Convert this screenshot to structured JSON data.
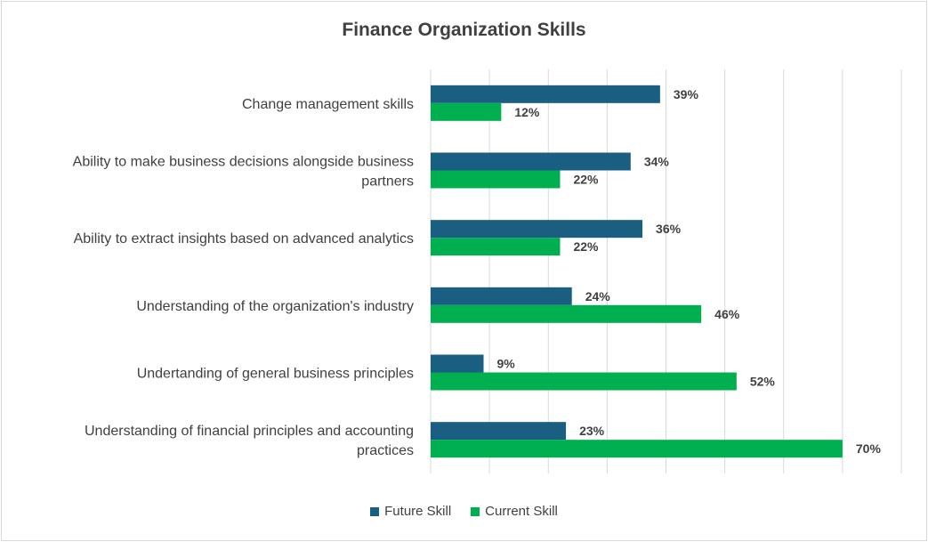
{
  "chart_data": {
    "type": "bar",
    "orientation": "horizontal",
    "title": "Finance Organization Skills",
    "categories": [
      [
        "Change management skills"
      ],
      [
        "Ability to make business decisions alongside business",
        "partners"
      ],
      [
        "Ability to extract insights based on advanced analytics"
      ],
      [
        "Understanding of the organization's industry"
      ],
      [
        "Undertanding of general business principles"
      ],
      [
        "Understanding of financial principles and accounting",
        "practices"
      ]
    ],
    "series": [
      {
        "name": "Future Skill",
        "color": "#1a5e82",
        "values": [
          39,
          34,
          36,
          24,
          9,
          23
        ],
        "labels": [
          "39%",
          "34%",
          "36%",
          "24%",
          "9%",
          "23%"
        ]
      },
      {
        "name": "Current Skill",
        "color": "#00b050",
        "values": [
          12,
          22,
          22,
          46,
          52,
          70
        ],
        "labels": [
          "12%",
          "22%",
          "22%",
          "46%",
          "52%",
          "70%"
        ]
      }
    ],
    "xlim": [
      0,
      80
    ],
    "grid": true,
    "legend_position": "bottom"
  }
}
